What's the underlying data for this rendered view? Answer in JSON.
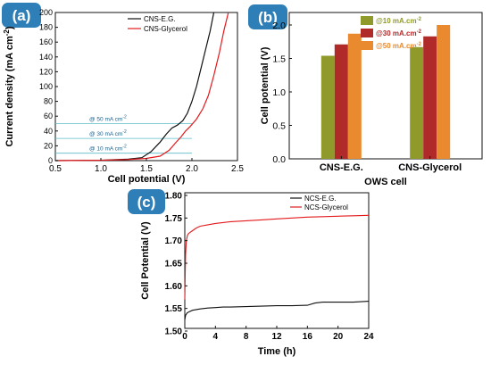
{
  "colors": {
    "black": "#111111",
    "red": "#e41a1c",
    "badge": "#2e7fb8",
    "annotation": "#5bbcc7",
    "bar_10": "#8f9a2a",
    "bar_30": "#b02a2a",
    "bar_50": "#e98a2e"
  },
  "chart_data": [
    {
      "panel": "(a)",
      "type": "line",
      "xlabel": "Cell potential (V)",
      "ylabel_main": "Current density (mA cm",
      "ylabel_sup": "-2",
      "ylabel_close": ")",
      "xlim": [
        0.5,
        2.5
      ],
      "ylim": [
        0,
        200
      ],
      "xticks": [
        "0.5",
        "1.0",
        "1.5",
        "2.0",
        "2.5"
      ],
      "yticks": [
        "0",
        "20",
        "40",
        "60",
        "80",
        "100",
        "120",
        "140",
        "160",
        "180",
        "200"
      ],
      "xtick_values": [
        0.5,
        1.0,
        1.5,
        2.0,
        2.5
      ],
      "ytick_values": [
        0,
        20,
        40,
        60,
        80,
        100,
        120,
        140,
        160,
        180,
        200
      ],
      "legend_position": "top-right",
      "annotations": [
        {
          "value": 50,
          "text": "@ 50 mA cm",
          "sup": "-2"
        },
        {
          "value": 30,
          "text": "@ 30 mA cm",
          "sup": "-2"
        },
        {
          "value": 10,
          "text": "@ 10 mA cm",
          "sup": "-2"
        }
      ],
      "series": [
        {
          "name": "CNS-E.G.",
          "color": "#111111",
          "x": [
            0.5,
            1.0,
            1.3,
            1.45,
            1.55,
            1.65,
            1.72,
            1.78,
            1.84,
            1.9,
            1.95,
            2.0,
            2.05,
            2.1,
            2.15,
            2.2,
            2.24
          ],
          "y": [
            0,
            0.5,
            2,
            4,
            12,
            25,
            36,
            44,
            48,
            54,
            64,
            80,
            100,
            125,
            150,
            175,
            200
          ]
        },
        {
          "name": "CNS-Glycerol",
          "color": "#e41a1c",
          "x": [
            0.5,
            1.0,
            1.3,
            1.5,
            1.65,
            1.75,
            1.82,
            1.88,
            1.93,
            1.98,
            2.05,
            2.12,
            2.18,
            2.24,
            2.3,
            2.35,
            2.4
          ],
          "y": [
            0,
            0.5,
            1.5,
            3,
            6,
            14,
            24,
            32,
            40,
            46,
            56,
            70,
            88,
            115,
            145,
            175,
            200
          ]
        }
      ]
    },
    {
      "panel": "(b)",
      "type": "bar",
      "xlabel": "OWS cell",
      "ylabel": "Cell potential (V)",
      "ylim": [
        0,
        2.0
      ],
      "yticks": [
        "0.0",
        "0.5",
        "1.0",
        "1.5",
        "2.0"
      ],
      "ytick_values": [
        0,
        0.5,
        1.0,
        1.5,
        2.0
      ],
      "categories": [
        "CNS-E.G.",
        "CNS-Glycerol"
      ],
      "legend_position": "top-left",
      "series": [
        {
          "name": "@10 mA.cm",
          "sup": "-2",
          "color": "#8f9a2a",
          "values": [
            1.54,
            1.67
          ]
        },
        {
          "name": "@30 mA.cm",
          "sup": "-2",
          "color": "#b02a2a",
          "values": [
            1.71,
            1.83
          ]
        },
        {
          "name": "@50 mA.cm",
          "sup": "-2",
          "color": "#e98a2e",
          "values": [
            1.87,
            2.0
          ]
        }
      ]
    },
    {
      "panel": "(c)",
      "type": "line",
      "xlabel": "Time (h)",
      "ylabel": "Cell Potential (V)",
      "xlim": [
        0,
        24
      ],
      "ylim": [
        1.5,
        1.8
      ],
      "xticks": [
        "0",
        "4",
        "8",
        "12",
        "16",
        "20",
        "24"
      ],
      "xtick_values": [
        0,
        4,
        8,
        12,
        16,
        20,
        24
      ],
      "yticks": [
        "1.50",
        "1.55",
        "1.60",
        "1.65",
        "1.70",
        "1.75",
        "1.80"
      ],
      "ytick_values": [
        1.5,
        1.55,
        1.6,
        1.65,
        1.7,
        1.75,
        1.8
      ],
      "legend_position": "top-right",
      "series": [
        {
          "name": "NCS-E.G.",
          "color": "#111111",
          "x": [
            0,
            0.1,
            0.3,
            0.6,
            1,
            2,
            3,
            4,
            5,
            6,
            8,
            10,
            12,
            14,
            16,
            17,
            18,
            20,
            22,
            24
          ],
          "y": [
            1.525,
            1.535,
            1.54,
            1.543,
            1.546,
            1.549,
            1.551,
            1.552,
            1.553,
            1.553,
            1.554,
            1.555,
            1.556,
            1.556,
            1.557,
            1.562,
            1.564,
            1.564,
            1.564,
            1.566
          ]
        },
        {
          "name": "NCS-Glycerol",
          "color": "#e41a1c",
          "x": [
            0,
            0.05,
            0.1,
            0.2,
            0.35,
            0.5,
            1,
            1.5,
            2,
            3,
            4,
            5,
            6,
            8,
            10,
            12,
            14,
            16,
            18,
            20,
            22,
            24
          ],
          "y": [
            1.57,
            1.62,
            1.67,
            1.7,
            1.712,
            1.716,
            1.722,
            1.728,
            1.732,
            1.735,
            1.738,
            1.74,
            1.742,
            1.744,
            1.746,
            1.748,
            1.75,
            1.752,
            1.753,
            1.754,
            1.755,
            1.756
          ]
        }
      ]
    }
  ]
}
